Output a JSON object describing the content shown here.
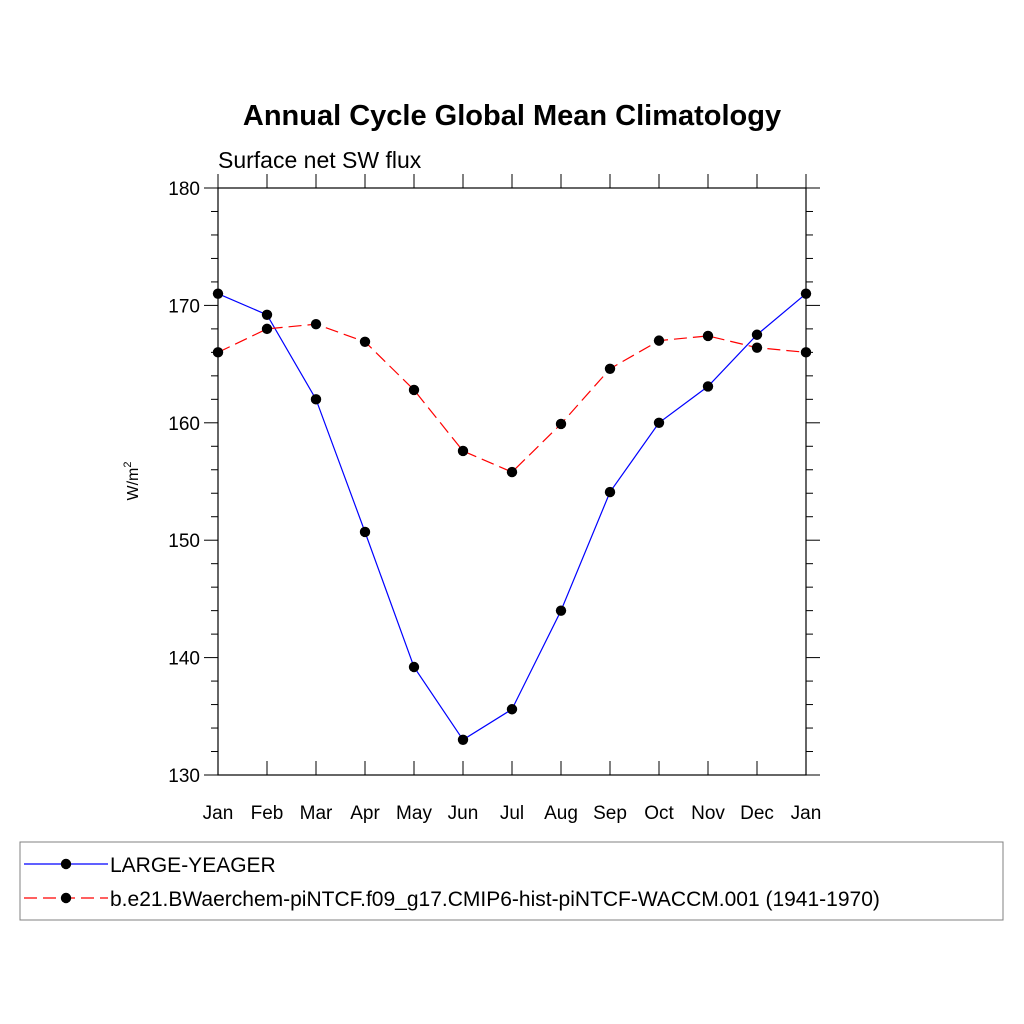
{
  "chart_data": {
    "type": "line",
    "title": "Annual Cycle Global Mean Climatology",
    "subtitle": "Surface net SW flux",
    "ylabel": "W/m",
    "ylabel_superscript": "2",
    "xlabel": "",
    "categories": [
      "Jan",
      "Feb",
      "Mar",
      "Apr",
      "May",
      "Jun",
      "Jul",
      "Aug",
      "Sep",
      "Oct",
      "Nov",
      "Dec",
      "Jan"
    ],
    "ylim": [
      130,
      180
    ],
    "yticks": [
      130,
      140,
      150,
      160,
      170,
      180
    ],
    "grid": false,
    "legend_position": "bottom",
    "series": [
      {
        "name": "LARGE-YEAGER",
        "color": "#0000ff",
        "style": "solid",
        "values": [
          171.0,
          169.2,
          162.0,
          150.7,
          139.2,
          133.0,
          135.6,
          144.0,
          154.1,
          160.0,
          163.1,
          167.5,
          171.0
        ]
      },
      {
        "name": "b.e21.BWaerchem-piNTCF.f09_g17.CMIP6-hist-piNTCF-WACCM.001 (1941-1970)",
        "color": "#ff0000",
        "style": "dashed",
        "values": [
          166.0,
          168.0,
          168.4,
          166.9,
          162.8,
          157.6,
          155.8,
          159.9,
          164.6,
          167.0,
          167.4,
          166.4,
          166.0
        ]
      }
    ]
  }
}
